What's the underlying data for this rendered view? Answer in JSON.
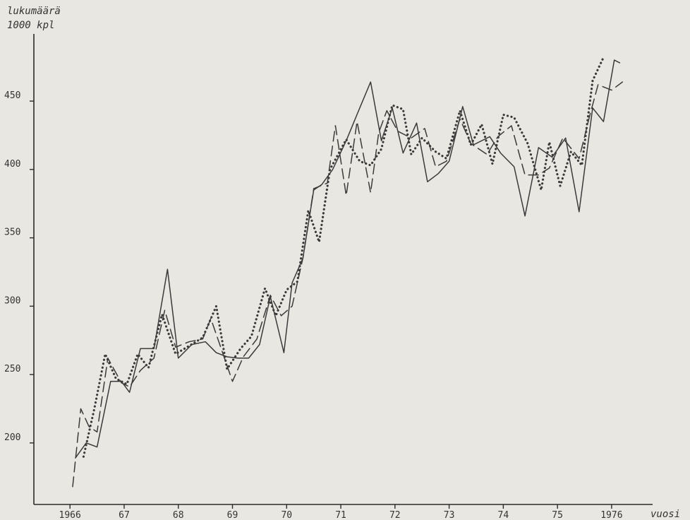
{
  "chart_data": {
    "type": "line",
    "title": "",
    "ylabel_line1": "lukumäärä",
    "ylabel_line2": "1000 kpl",
    "xlabel": "vuosi",
    "ylim": [
      155,
      495
    ],
    "xlim": [
      1965.75,
      1976.9
    ],
    "grid": false,
    "x_tick_labels": [
      {
        "value": 1966,
        "label": "1966"
      },
      {
        "value": 1967,
        "label": "67"
      },
      {
        "value": 1968,
        "label": "68"
      },
      {
        "value": 1969,
        "label": "69"
      },
      {
        "value": 1970,
        "label": "70"
      },
      {
        "value": 1971,
        "label": "71"
      },
      {
        "value": 1972,
        "label": "72"
      },
      {
        "value": 1973,
        "label": "73"
      },
      {
        "value": 1974,
        "label": "74"
      },
      {
        "value": 1975,
        "label": "75"
      },
      {
        "value": 1976,
        "label": "1976"
      }
    ],
    "y_tick_labels": [
      {
        "value": 200,
        "label": "200"
      },
      {
        "value": 250,
        "label": "250"
      },
      {
        "value": 300,
        "label": "300"
      },
      {
        "value": 350,
        "label": "350"
      },
      {
        "value": 400,
        "label": "400"
      },
      {
        "value": 450,
        "label": "450"
      }
    ],
    "series": [
      {
        "style": "solid",
        "color": "#3a3a3a",
        "points": [
          [
            1966.1,
            189
          ],
          [
            1966.3,
            200
          ],
          [
            1966.5,
            197
          ],
          [
            1966.75,
            245
          ],
          [
            1966.95,
            245
          ],
          [
            1967.1,
            237
          ],
          [
            1967.3,
            269
          ],
          [
            1967.55,
            269
          ],
          [
            1967.8,
            327
          ],
          [
            1968.0,
            262
          ],
          [
            1968.25,
            272
          ],
          [
            1968.5,
            274
          ],
          [
            1968.7,
            266
          ],
          [
            1968.9,
            263
          ],
          [
            1969.1,
            262
          ],
          [
            1969.3,
            262
          ],
          [
            1969.5,
            272
          ],
          [
            1969.7,
            307
          ],
          [
            1969.95,
            266
          ],
          [
            1970.1,
            317
          ],
          [
            1970.3,
            335
          ],
          [
            1970.5,
            385
          ],
          [
            1970.65,
            389
          ],
          [
            1970.85,
            400
          ],
          [
            1971.1,
            421
          ],
          [
            1971.35,
            445
          ],
          [
            1971.55,
            464
          ],
          [
            1971.75,
            421
          ],
          [
            1971.95,
            445
          ],
          [
            1972.15,
            412
          ],
          [
            1972.4,
            434
          ],
          [
            1972.6,
            391
          ],
          [
            1972.8,
            397
          ],
          [
            1973.0,
            406
          ],
          [
            1973.25,
            446
          ],
          [
            1973.45,
            418
          ],
          [
            1973.75,
            424
          ],
          [
            1973.95,
            412
          ],
          [
            1974.2,
            402
          ],
          [
            1974.4,
            366
          ],
          [
            1974.65,
            416
          ],
          [
            1974.9,
            409
          ],
          [
            1975.15,
            423
          ],
          [
            1975.4,
            369
          ],
          [
            1975.65,
            445
          ],
          [
            1975.85,
            435
          ],
          [
            1976.05,
            480
          ],
          [
            1976.15,
            478
          ]
        ]
      },
      {
        "style": "dashed",
        "color": "#3a3a3a",
        "points": [
          [
            1966.05,
            168
          ],
          [
            1966.2,
            225
          ],
          [
            1966.35,
            212
          ],
          [
            1966.5,
            208
          ],
          [
            1966.7,
            262
          ],
          [
            1966.95,
            244
          ],
          [
            1967.1,
            241
          ],
          [
            1967.3,
            253
          ],
          [
            1967.55,
            262
          ],
          [
            1967.75,
            297
          ],
          [
            1967.95,
            270
          ],
          [
            1968.2,
            274
          ],
          [
            1968.45,
            276
          ],
          [
            1968.6,
            291
          ],
          [
            1969.0,
            245
          ],
          [
            1969.2,
            263
          ],
          [
            1969.45,
            276
          ],
          [
            1969.7,
            308
          ],
          [
            1969.9,
            293
          ],
          [
            1970.1,
            300
          ],
          [
            1970.3,
            335
          ],
          [
            1970.5,
            386
          ],
          [
            1970.75,
            390
          ],
          [
            1970.9,
            432
          ],
          [
            1971.1,
            381
          ],
          [
            1971.3,
            435
          ],
          [
            1971.55,
            383
          ],
          [
            1971.7,
            427
          ],
          [
            1971.85,
            443
          ],
          [
            1972.05,
            428
          ],
          [
            1972.3,
            423
          ],
          [
            1972.55,
            430
          ],
          [
            1972.75,
            402
          ],
          [
            1972.95,
            406
          ],
          [
            1973.2,
            437
          ],
          [
            1973.4,
            419
          ],
          [
            1973.7,
            411
          ],
          [
            1973.9,
            424
          ],
          [
            1974.15,
            432
          ],
          [
            1974.4,
            396
          ],
          [
            1974.65,
            396
          ],
          [
            1974.85,
            401
          ],
          [
            1975.1,
            423
          ],
          [
            1975.4,
            408
          ],
          [
            1975.6,
            440
          ],
          [
            1975.75,
            462
          ],
          [
            1976.0,
            458
          ],
          [
            1976.2,
            464
          ]
        ]
      },
      {
        "style": "dotted",
        "color": "#222222",
        "points": [
          [
            1966.25,
            190
          ],
          [
            1966.45,
            225
          ],
          [
            1966.65,
            265
          ],
          [
            1966.85,
            247
          ],
          [
            1967.05,
            243
          ],
          [
            1967.25,
            265
          ],
          [
            1967.45,
            255
          ],
          [
            1967.7,
            294
          ],
          [
            1967.95,
            265
          ],
          [
            1968.2,
            271
          ],
          [
            1968.45,
            277
          ],
          [
            1968.7,
            300
          ],
          [
            1968.9,
            254
          ],
          [
            1969.15,
            269
          ],
          [
            1969.35,
            278
          ],
          [
            1969.6,
            313
          ],
          [
            1969.8,
            293
          ],
          [
            1970.0,
            312
          ],
          [
            1970.2,
            318
          ],
          [
            1970.4,
            370
          ],
          [
            1970.6,
            347
          ],
          [
            1970.8,
            400
          ],
          [
            1971.1,
            422
          ],
          [
            1971.35,
            406
          ],
          [
            1971.55,
            403
          ],
          [
            1971.75,
            415
          ],
          [
            1971.95,
            447
          ],
          [
            1972.15,
            444
          ],
          [
            1972.3,
            411
          ],
          [
            1972.5,
            423
          ],
          [
            1972.75,
            413
          ],
          [
            1972.95,
            408
          ],
          [
            1973.2,
            443
          ],
          [
            1973.4,
            418
          ],
          [
            1973.6,
            433
          ],
          [
            1973.8,
            404
          ],
          [
            1974.0,
            440
          ],
          [
            1974.2,
            438
          ],
          [
            1974.45,
            419
          ],
          [
            1974.7,
            385
          ],
          [
            1974.85,
            420
          ],
          [
            1975.05,
            388
          ],
          [
            1975.25,
            413
          ],
          [
            1975.45,
            403
          ],
          [
            1975.65,
            465
          ],
          [
            1975.85,
            482
          ]
        ]
      }
    ]
  }
}
